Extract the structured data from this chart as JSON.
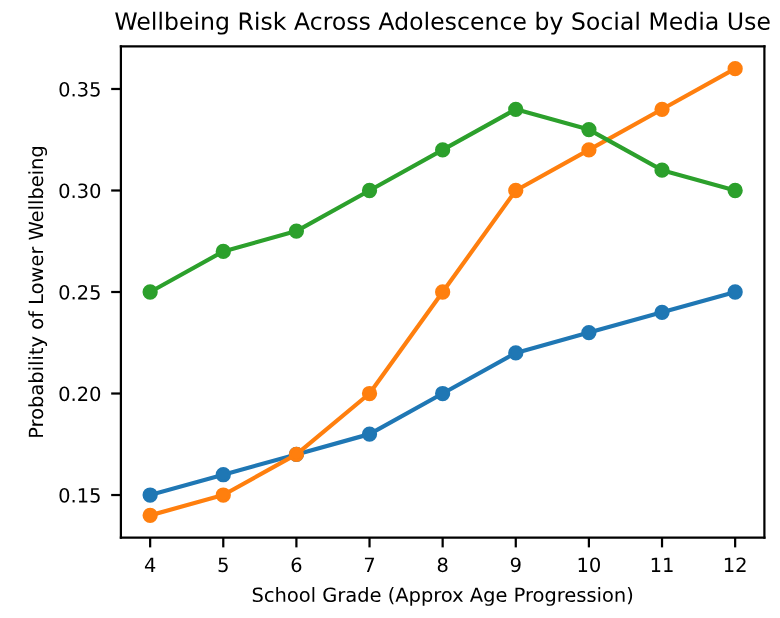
{
  "chart_data": {
    "type": "line",
    "title": "Wellbeing Risk Across Adolescence by Social Media Use",
    "xlabel": "School Grade (Approx Age Progression)",
    "ylabel": "Probability of Lower Wellbeing",
    "x": [
      4,
      5,
      6,
      7,
      8,
      9,
      10,
      11,
      12
    ],
    "series": [
      {
        "color": "#1f77b4",
        "values": [
          0.15,
          0.16,
          0.17,
          0.18,
          0.2,
          0.22,
          0.23,
          0.24,
          0.25
        ]
      },
      {
        "color": "#ff7f0e",
        "values": [
          0.14,
          0.15,
          0.17,
          0.2,
          0.25,
          0.3,
          0.32,
          0.34,
          0.36
        ]
      },
      {
        "color": "#2ca02c",
        "values": [
          0.25,
          0.27,
          0.28,
          0.3,
          0.32,
          0.34,
          0.33,
          0.31,
          0.3
        ]
      }
    ],
    "xlim": [
      3.6,
      12.4
    ],
    "xticks": [
      4,
      5,
      6,
      7,
      8,
      9,
      10,
      11,
      12
    ],
    "ylim": [
      0.129,
      0.371
    ],
    "yticks": [
      0.15,
      {
        "value": 0.2,
        "label": "0.20"
      },
      0.25,
      {
        "value": 0.3,
        "label": "0.30"
      },
      0.35
    ],
    "marker": "circle",
    "line_style": "solid",
    "grid": false
  }
}
